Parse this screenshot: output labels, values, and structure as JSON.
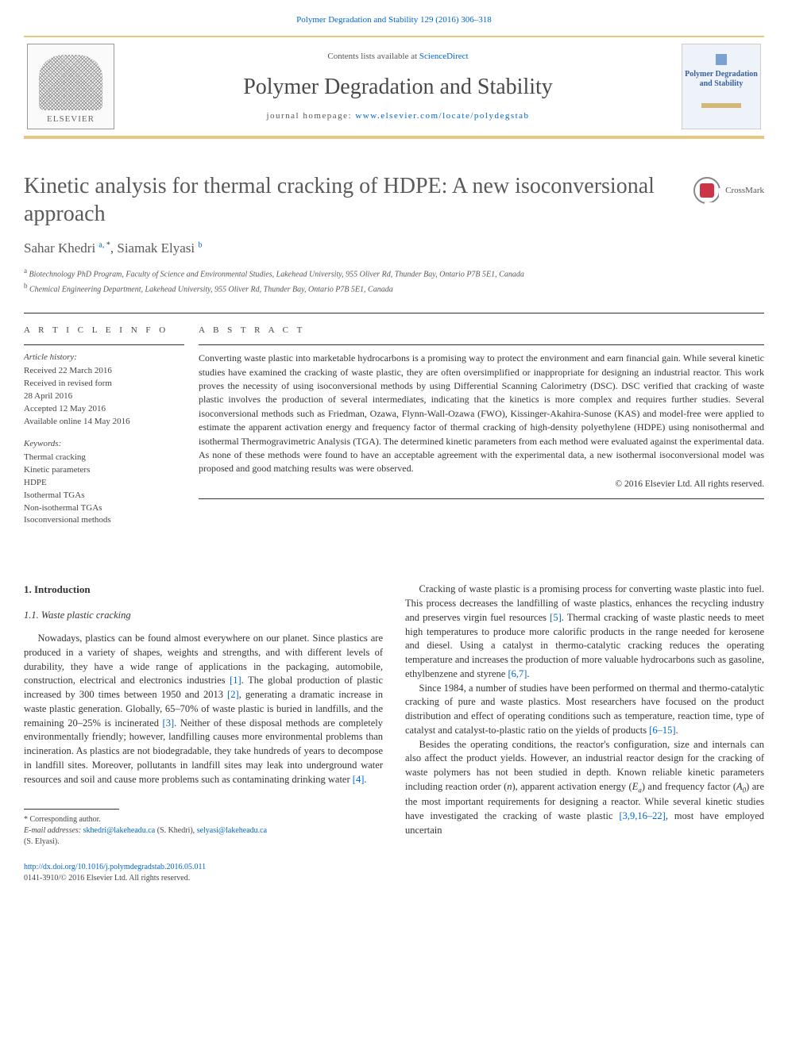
{
  "citation_line": "Polymer Degradation and Stability 129 (2016) 306–318",
  "masthead": {
    "contents_prefix": "Contents lists available at ",
    "contents_link": "ScienceDirect",
    "journal_name": "Polymer Degradation and Stability",
    "homepage_prefix": "journal homepage: ",
    "homepage_link": "www.elsevier.com/locate/polydegstab",
    "publisher_logo_label": "ELSEVIER",
    "cover_title_lines": "Polymer Degradation and Stability"
  },
  "article": {
    "title": "Kinetic analysis for thermal cracking of HDPE: A new isoconversional approach",
    "crossmark_label": "CrossMark",
    "authors_html": "Sahar Khedri <sup>a, </sup><sup class='sup-star'>*</sup>, Siamak Elyasi <sup>b</sup>",
    "affiliations": [
      "a Biotechnology PhD Program, Faculty of Science and Environmental Studies, Lakehead University, 955 Oliver Rd, Thunder Bay, Ontario P7B 5E1, Canada",
      "b Chemical Engineering Department, Lakehead University, 955 Oliver Rd, Thunder Bay, Ontario P7B 5E1, Canada"
    ]
  },
  "info": {
    "heading": "A R T I C L E   I N F O",
    "history_label": "Article history:",
    "history_lines": [
      "Received 22 March 2016",
      "Received in revised form",
      "28 April 2016",
      "Accepted 12 May 2016",
      "Available online 14 May 2016"
    ],
    "keywords_label": "Keywords:",
    "keywords": [
      "Thermal cracking",
      "Kinetic parameters",
      "HDPE",
      "Isothermal TGAs",
      "Non-isothermal TGAs",
      "Isoconversional methods"
    ]
  },
  "abstract": {
    "heading": "A B S T R A C T",
    "text": "Converting waste plastic into marketable hydrocarbons is a promising way to protect the environment and earn financial gain. While several kinetic studies have examined the cracking of waste plastic, they are often oversimplified or inappropriate for designing an industrial reactor. This work proves the necessity of using isoconversional methods by using Differential Scanning Calorimetry (DSC). DSC verified that cracking of waste plastic involves the production of several intermediates, indicating that the kinetics is more complex and requires further studies. Several isoconversional methods such as Friedman, Ozawa, Flynn-Wall-Ozawa (FWO), Kissinger-Akahira-Sunose (KAS) and model-free were applied to estimate the apparent activation energy and frequency factor of thermal cracking of high-density polyethylene (HDPE) using nonisothermal and isothermal Thermogravimetric Analysis (TGA). The determined kinetic parameters from each method were evaluated against the experimental data. As none of these methods were found to have an acceptable agreement with the experimental data, a new isothermal isoconversional model was proposed and good matching results was were observed.",
    "copyright": "© 2016 Elsevier Ltd. All rights reserved."
  },
  "body": {
    "section_number": "1.",
    "section_title": "Introduction",
    "subsection_number": "1.1.",
    "subsection_title": "Waste plastic cracking",
    "left_paragraphs": [
      "Nowadays, plastics can be found almost everywhere on our planet. Since plastics are produced in a variety of shapes, weights and strengths, and with different levels of durability, they have a wide range of applications in the packaging, automobile, construction, electrical and electronics industries <a class='ref'>[1]</a>. The global production of plastic increased by 300 times between 1950 and 2013 <a class='ref'>[2]</a>, generating a dramatic increase in waste plastic generation. Globally, 65–70% of waste plastic is buried in landfills, and the remaining 20–25% is incinerated <a class='ref'>[3]</a>. Neither of these disposal methods are completely environmentally friendly; however, landfilling causes more environmental problems than incineration. As plastics are not biodegradable, they take hundreds of years to decompose in landfill sites. Moreover, pollutants in landfill sites may leak into underground water resources and soil and cause more problems such as contaminating drinking water <a class='ref'>[4]</a>."
    ],
    "right_paragraphs": [
      "Cracking of waste plastic is a promising process for converting waste plastic into fuel. This process decreases the landfilling of waste plastics, enhances the recycling industry and preserves virgin fuel resources <a class='ref'>[5]</a>. Thermal cracking of waste plastic needs to meet high temperatures to produce more calorific products in the range needed for kerosene and diesel. Using a catalyst in thermo-catalytic cracking reduces the operating temperature and increases the production of more valuable hydrocarbons such as gasoline, ethylbenzene and styrene <a class='ref'>[6,7]</a>.",
      "Since 1984, a number of studies have been performed on thermal and thermo-catalytic cracking of pure and waste plastics. Most researchers have focused on the product distribution and effect of operating conditions such as temperature, reaction time, type of catalyst and catalyst-to-plastic ratio on the yields of products <a class='ref'>[6–15]</a>.",
      "Besides the operating conditions, the reactor's configuration, size and internals can also affect the product yields. However, an industrial reactor design for the cracking of waste polymers has not been studied in depth. Known reliable kinetic parameters including reaction order (<span class='ital'>n</span>), apparent activation energy (<span class='ital'>E<span class='sub'>a</span></span>) and frequency factor (<span class='ital'>A<span class='sub'>0</span></span>) are the most important requirements for designing a reactor. While several kinetic studies have investigated the cracking of waste plastic <a class='ref'>[3,9,16–22]</a>, most have employed uncertain"
    ]
  },
  "footnotes": {
    "corresponding": "* Corresponding author.",
    "emails_prefix": "E-mail addresses: ",
    "email1": "skhedri@lakeheadu.ca",
    "email1_who": " (S. Khedri), ",
    "email2": "selyasi@lakeheadu.ca",
    "email2_who": " (S. Elyasi)."
  },
  "footer": {
    "doi": "http://dx.doi.org/10.1016/j.polymdegradstab.2016.05.011",
    "issn_line": "0141-3910/© 2016 Elsevier Ltd. All rights reserved."
  },
  "colors": {
    "rule_gold": "#e8c880",
    "link_blue": "#0066cc",
    "text_gray": "#333333",
    "heading_gray": "#5a5a5a"
  }
}
